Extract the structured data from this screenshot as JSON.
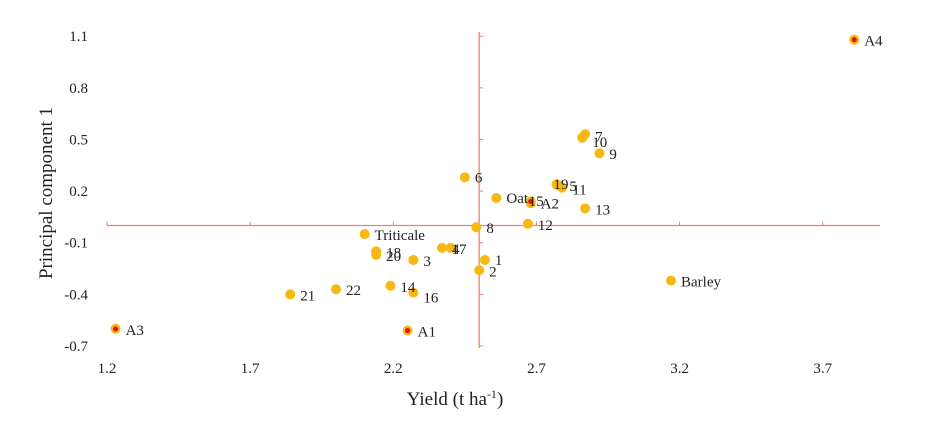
{
  "chart_data": {
    "type": "scatter",
    "xlabel": "Yield (t ha",
    "xlabel_sup": "-1",
    "xlabel_close": ")",
    "ylabel": "Principal component 1",
    "xlim": [
      1.2,
      3.9
    ],
    "ylim": [
      -0.7,
      1.2
    ],
    "x_ticks": [
      1.2,
      1.7,
      2.2,
      2.7,
      3.2,
      3.7
    ],
    "y_ticks": [
      1.1,
      0.8,
      0.5,
      0.2,
      -0.1,
      -0.4,
      -0.7
    ],
    "x_tick_labels": [
      "1.2",
      "1.7",
      "2.2",
      "2.7",
      "3.2",
      "3.7"
    ],
    "y_tick_labels": [
      "1.1",
      "0.8",
      "0.5",
      "0.2",
      "-0.1",
      "-0.4",
      "-0.7"
    ],
    "crosshair": {
      "x": 2.5,
      "y": 0.0
    },
    "grid": false,
    "legend": "none",
    "colors": {
      "point": "#f7b90f",
      "special_center": "#e0141c",
      "crosshair": "#f08070"
    },
    "points": [
      {
        "label": "1",
        "x": 2.52,
        "y": -0.2
      },
      {
        "label": "2",
        "x": 2.5,
        "y": -0.26
      },
      {
        "label": "3",
        "x": 2.27,
        "y": -0.2
      },
      {
        "label": "4",
        "x": 2.37,
        "y": -0.13
      },
      {
        "label": "5",
        "x": 2.78,
        "y": 0.23
      },
      {
        "label": "6",
        "x": 2.45,
        "y": 0.28
      },
      {
        "label": "7",
        "x": 2.87,
        "y": 0.53
      },
      {
        "label": "8",
        "x": 2.49,
        "y": -0.01
      },
      {
        "label": "9",
        "x": 2.92,
        "y": 0.42
      },
      {
        "label": "10",
        "x": 2.86,
        "y": 0.51
      },
      {
        "label": "11",
        "x": 2.79,
        "y": 0.22
      },
      {
        "label": "12",
        "x": 2.67,
        "y": 0.01
      },
      {
        "label": "13",
        "x": 2.87,
        "y": 0.1
      },
      {
        "label": "14",
        "x": 2.19,
        "y": -0.35
      },
      {
        "label": "15",
        "x": 2.68,
        "y": 0.13
      },
      {
        "label": "16",
        "x": 2.27,
        "y": -0.39
      },
      {
        "label": "17",
        "x": 2.4,
        "y": -0.13
      },
      {
        "label": "18",
        "x": 2.14,
        "y": -0.15
      },
      {
        "label": "19",
        "x": 2.77,
        "y": 0.24
      },
      {
        "label": "20",
        "x": 2.14,
        "y": -0.17
      },
      {
        "label": "21",
        "x": 1.84,
        "y": -0.4
      },
      {
        "label": "22",
        "x": 2.0,
        "y": -0.37
      },
      {
        "label": "Oat",
        "x": 2.56,
        "y": 0.16
      },
      {
        "label": "Triticale",
        "x": 2.1,
        "y": -0.05
      },
      {
        "label": "Barley",
        "x": 3.17,
        "y": -0.32
      },
      {
        "label": "A1",
        "x": 2.25,
        "y": -0.61,
        "special": true
      },
      {
        "label": "A2",
        "x": 2.68,
        "y": 0.14,
        "special": true
      },
      {
        "label": "A3",
        "x": 1.23,
        "y": -0.6,
        "special": true
      },
      {
        "label": "A4",
        "x": 3.81,
        "y": 1.08,
        "special": true
      }
    ]
  }
}
